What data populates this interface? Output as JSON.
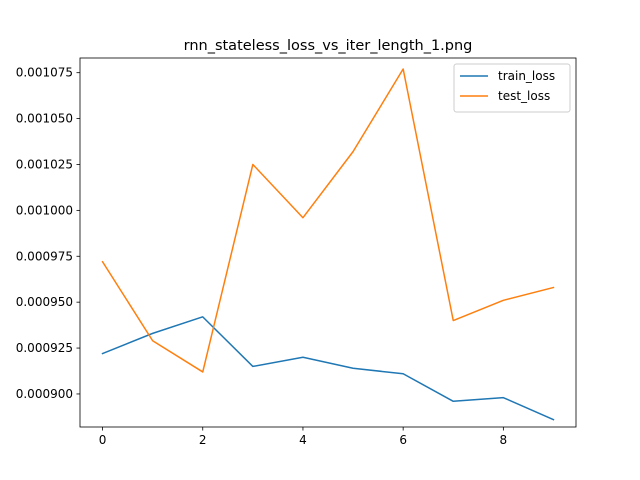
{
  "chart_data": {
    "type": "line",
    "title": "rnn_stateless_loss_vs_iter_length_1.png",
    "xlabel": "",
    "ylabel": "",
    "x": [
      0,
      1,
      2,
      3,
      4,
      5,
      6,
      7,
      8,
      9
    ],
    "xlim": [
      -0.45,
      9.45
    ],
    "ylim": [
      0.000882,
      0.001083
    ],
    "x_ticks": [
      0,
      2,
      4,
      6,
      8
    ],
    "x_tick_labels": [
      "0",
      "2",
      "4",
      "6",
      "8"
    ],
    "y_ticks": [
      0.0009,
      0.000925,
      0.00095,
      0.000975,
      0.001,
      0.001025,
      0.00105,
      0.001075
    ],
    "y_tick_labels": [
      "0.000900",
      "0.000925",
      "0.000950",
      "0.000975",
      "0.001000",
      "0.001025",
      "0.001050",
      "0.001075"
    ],
    "grid": false,
    "legend_position": "upper right",
    "series": [
      {
        "name": "train_loss",
        "color": "#1f77b4",
        "values": [
          0.000922,
          0.000933,
          0.000942,
          0.000915,
          0.00092,
          0.000914,
          0.000911,
          0.000896,
          0.000898,
          0.000886
        ]
      },
      {
        "name": "test_loss",
        "color": "#ff7f0e",
        "values": [
          0.000972,
          0.000929,
          0.000912,
          0.001025,
          0.000996,
          0.001032,
          0.001077,
          0.00094,
          0.000951,
          0.000958
        ]
      }
    ]
  }
}
